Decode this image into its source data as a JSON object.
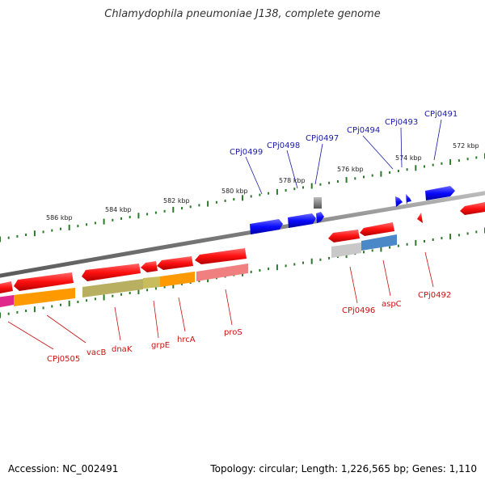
{
  "title": "Chlamydophila pneumoniae J138, complete genome",
  "footer": {
    "accession": "Accession: NC_002491",
    "info": "Topology: circular; Length: 1,226,565 bp; Genes: 1,110"
  },
  "scale_labels": [
    "586 kbp",
    "584 kbp",
    "582 kbp",
    "580 kbp",
    "578 kbp",
    "576 kbp",
    "574 kbp",
    "572 kbp"
  ],
  "top_gene_labels": [
    "CPj0499",
    "CPj0498",
    "CPj0497",
    "CPj0494",
    "CPj0493",
    "CPj0491"
  ],
  "bottom_gene_labels": [
    "CPj0505",
    "vacB",
    "dnaK",
    "grpE",
    "hrcA",
    "proS",
    "CPj0496",
    "aspC",
    "CPj0492"
  ],
  "colors": {
    "forward_gene": "#0000ff",
    "reverse_gene": "#ff0000",
    "tick": "#2a7a2a",
    "top_label": "#1a1aa8",
    "bottom_label": "#cc1111",
    "backbone": "#808080"
  }
}
